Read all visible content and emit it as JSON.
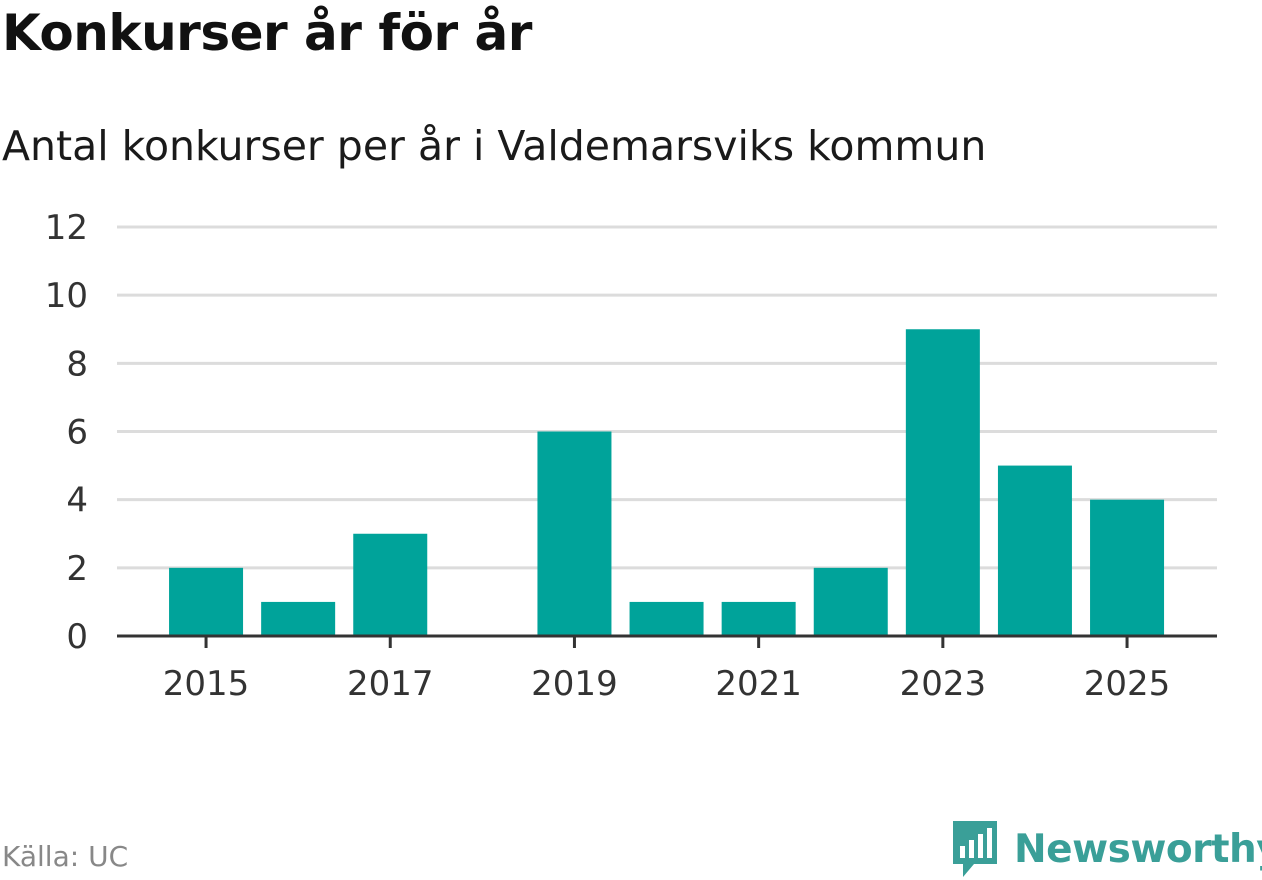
{
  "header": {
    "title": "Konkurser år för år",
    "subtitle": "Antal konkurser per år i Valdemarsviks kommun"
  },
  "footer": {
    "source": "Källa: UC",
    "brand": "Newsworthy"
  },
  "colors": {
    "bar": "#00a39a",
    "grid": "#dcdcdc",
    "axis": "#333333",
    "brand": "#3a9f98"
  },
  "chart_data": {
    "type": "bar",
    "title": "Konkurser år för år",
    "subtitle": "Antal konkurser per år i Valdemarsviks kommun",
    "categories": [
      "2015",
      "2016",
      "2017",
      "2018",
      "2019",
      "2020",
      "2021",
      "2022",
      "2023",
      "2024",
      "2025"
    ],
    "values": [
      2,
      1,
      3,
      0,
      6,
      1,
      1,
      2,
      9,
      5,
      4
    ],
    "x_tick_labels": [
      "2015",
      "2017",
      "2019",
      "2021",
      "2023",
      "2025"
    ],
    "y_ticks": [
      0,
      2,
      4,
      6,
      8,
      10,
      12
    ],
    "ylim": [
      0,
      12
    ],
    "grid": true,
    "legend": "none"
  }
}
